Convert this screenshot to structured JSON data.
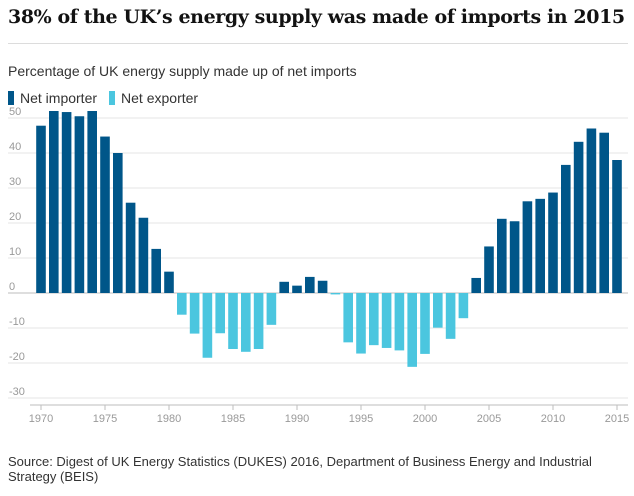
{
  "header": {
    "title": "38% of the UK’s energy supply was made of imports in 2015",
    "subtitle": "Percentage of UK energy supply made up of net imports"
  },
  "legend": {
    "importer_label": "Net importer",
    "exporter_label": "Net exporter",
    "importer_color": "#005689",
    "exporter_color": "#4bc6df"
  },
  "source": "Source: Digest of UK Energy Statistics (DUKES) 2016, Department of Business Energy and Industrial Strategy (BEIS)",
  "chart_data": {
    "type": "bar",
    "title": "38% of the UK’s energy supply was made of imports in 2015",
    "subtitle": "Percentage of UK energy supply made up of net imports",
    "xlabel": "",
    "ylabel": "",
    "ylim": [
      -30,
      50
    ],
    "yticks": [
      50,
      40,
      30,
      20,
      10,
      0,
      -10,
      -20,
      -30
    ],
    "xticks": [
      1970,
      1975,
      1980,
      1985,
      1990,
      1995,
      2000,
      2005,
      2010,
      2015
    ],
    "grid": true,
    "legend_position": "top-left",
    "categories": [
      1970,
      1971,
      1972,
      1973,
      1974,
      1975,
      1976,
      1977,
      1978,
      1979,
      1980,
      1981,
      1982,
      1983,
      1984,
      1985,
      1986,
      1987,
      1988,
      1989,
      1990,
      1991,
      1992,
      1993,
      1994,
      1995,
      1996,
      1997,
      1998,
      1999,
      2000,
      2001,
      2002,
      2003,
      2004,
      2005,
      2006,
      2007,
      2008,
      2009,
      2010,
      2011,
      2012,
      2013,
      2014,
      2015
    ],
    "values": [
      47.8,
      52,
      51.7,
      50.5,
      52,
      44.7,
      40,
      25.8,
      21.5,
      12.6,
      6.1,
      -6.2,
      -11.6,
      -18.5,
      -11.5,
      -16,
      -16.8,
      -16,
      -9.1,
      3.2,
      2.1,
      4.6,
      3.5,
      -0.4,
      -14.1,
      -17.3,
      -14.9,
      -15.7,
      -16.4,
      -21.1,
      -17.4,
      -9.9,
      -13.1,
      -7.2,
      4.3,
      13.3,
      21.2,
      20.5,
      26.2,
      26.9,
      28.7,
      36.6,
      43.2,
      47,
      45.8,
      38
    ]
  }
}
